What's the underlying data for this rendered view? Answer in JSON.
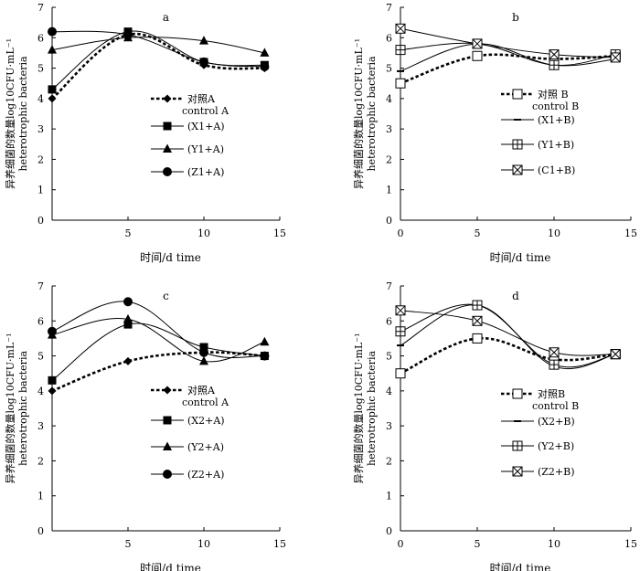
{
  "chart_data": [
    {
      "type": "line",
      "title": "a",
      "xlabel": "时间/d  time",
      "ylabel": "异养细菌的数量log10CFU·mL⁻¹",
      "ylabel_en": "heterotrophic bacteria",
      "xlim": [
        0,
        15
      ],
      "ylim": [
        0,
        7
      ],
      "xticks": [
        5,
        10,
        15
      ],
      "yticks": [
        0,
        1,
        2,
        3,
        4,
        5,
        6,
        7
      ],
      "x": [
        0,
        5,
        10,
        14
      ],
      "legend_position": "center",
      "series": [
        {
          "name": "对照A",
          "name2": "control A",
          "marker": "diamond",
          "dashed": true,
          "values": [
            4.0,
            6.1,
            5.1,
            5.0
          ]
        },
        {
          "name": "(X1+A)",
          "marker": "square",
          "dashed": false,
          "values": [
            4.3,
            6.2,
            5.2,
            5.1
          ]
        },
        {
          "name": "(Y1+A)",
          "marker": "triangle",
          "dashed": false,
          "values": [
            5.6,
            6.0,
            5.9,
            5.5
          ]
        },
        {
          "name": "(Z1+A)",
          "marker": "circle",
          "dashed": false,
          "values": [
            6.2,
            6.1,
            5.2,
            5.05
          ]
        }
      ]
    },
    {
      "type": "line",
      "title": "b",
      "xlabel": "时间/d  time",
      "ylabel": "异养细菌的数量log10CFU·mL⁻¹",
      "ylabel_en": "heterotrophic bacteria",
      "xlim": [
        0,
        15
      ],
      "ylim": [
        0,
        7
      ],
      "xticks": [
        0,
        5,
        10,
        15
      ],
      "yticks": [
        0,
        1,
        2,
        3,
        4,
        5,
        6,
        7
      ],
      "x": [
        0,
        5,
        10,
        14
      ],
      "legend_position": "center",
      "series": [
        {
          "name": "对照 B",
          "name2": "control B",
          "marker": "open-square",
          "dashed": true,
          "values": [
            4.5,
            5.4,
            5.3,
            5.4
          ]
        },
        {
          "name": "(X1+B)",
          "marker": "dash",
          "dashed": false,
          "values": [
            4.9,
            5.8,
            5.1,
            5.3
          ]
        },
        {
          "name": "(Y1+B)",
          "marker": "square-plus",
          "dashed": false,
          "values": [
            5.6,
            5.8,
            5.1,
            5.45
          ]
        },
        {
          "name": "(C1+B)",
          "marker": "square-x",
          "dashed": false,
          "values": [
            6.3,
            5.8,
            5.45,
            5.35
          ]
        }
      ]
    },
    {
      "type": "line",
      "title": "c",
      "xlabel": "时间/d  time",
      "ylabel": "异养细菌的数量log10CFU·mL⁻¹",
      "ylabel_en": "heterotrophic bacteria",
      "xlim": [
        0,
        15
      ],
      "ylim": [
        0,
        7
      ],
      "xticks": [
        5,
        10,
        15
      ],
      "yticks": [
        0,
        1,
        2,
        3,
        4,
        5,
        6,
        7
      ],
      "x": [
        0,
        5,
        10,
        14
      ],
      "legend_position": "center",
      "series": [
        {
          "name": "对照A",
          "name2": "control A",
          "marker": "diamond",
          "dashed": true,
          "values": [
            4.0,
            4.85,
            5.1,
            5.0
          ]
        },
        {
          "name": "(X2+A)",
          "marker": "square",
          "dashed": false,
          "values": [
            4.3,
            5.9,
            5.25,
            5.0
          ]
        },
        {
          "name": "(Y2+A)",
          "marker": "triangle",
          "dashed": false,
          "values": [
            5.6,
            6.05,
            4.85,
            5.4
          ]
        },
        {
          "name": "(Z2+A)",
          "marker": "circle",
          "dashed": false,
          "values": [
            5.7,
            6.55,
            5.1,
            5.0
          ]
        }
      ]
    },
    {
      "type": "line",
      "title": "d",
      "xlabel": "时间/d  time",
      "ylabel": "异养细菌的数量log10CFU·mL⁻¹",
      "ylabel_en": "heterotrophic bacteria",
      "xlim": [
        0,
        15
      ],
      "ylim": [
        0,
        7
      ],
      "xticks": [
        0,
        5,
        10,
        15
      ],
      "yticks": [
        0,
        1,
        2,
        3,
        4,
        5,
        6,
        7
      ],
      "x": [
        0,
        5,
        10,
        14
      ],
      "legend_position": "center",
      "series": [
        {
          "name": "对照B",
          "name2": "control B",
          "marker": "open-square",
          "dashed": true,
          "values": [
            4.5,
            5.5,
            4.9,
            5.05
          ]
        },
        {
          "name": "(X2+B)",
          "marker": "dash",
          "dashed": false,
          "values": [
            5.3,
            6.45,
            4.7,
            5.05
          ]
        },
        {
          "name": "(Y2+B)",
          "marker": "square-plus",
          "dashed": false,
          "values": [
            5.7,
            6.45,
            4.75,
            5.05
          ]
        },
        {
          "name": "(Z2+B)",
          "marker": "square-x",
          "dashed": false,
          "values": [
            6.3,
            6.0,
            5.1,
            5.05
          ]
        }
      ]
    }
  ]
}
